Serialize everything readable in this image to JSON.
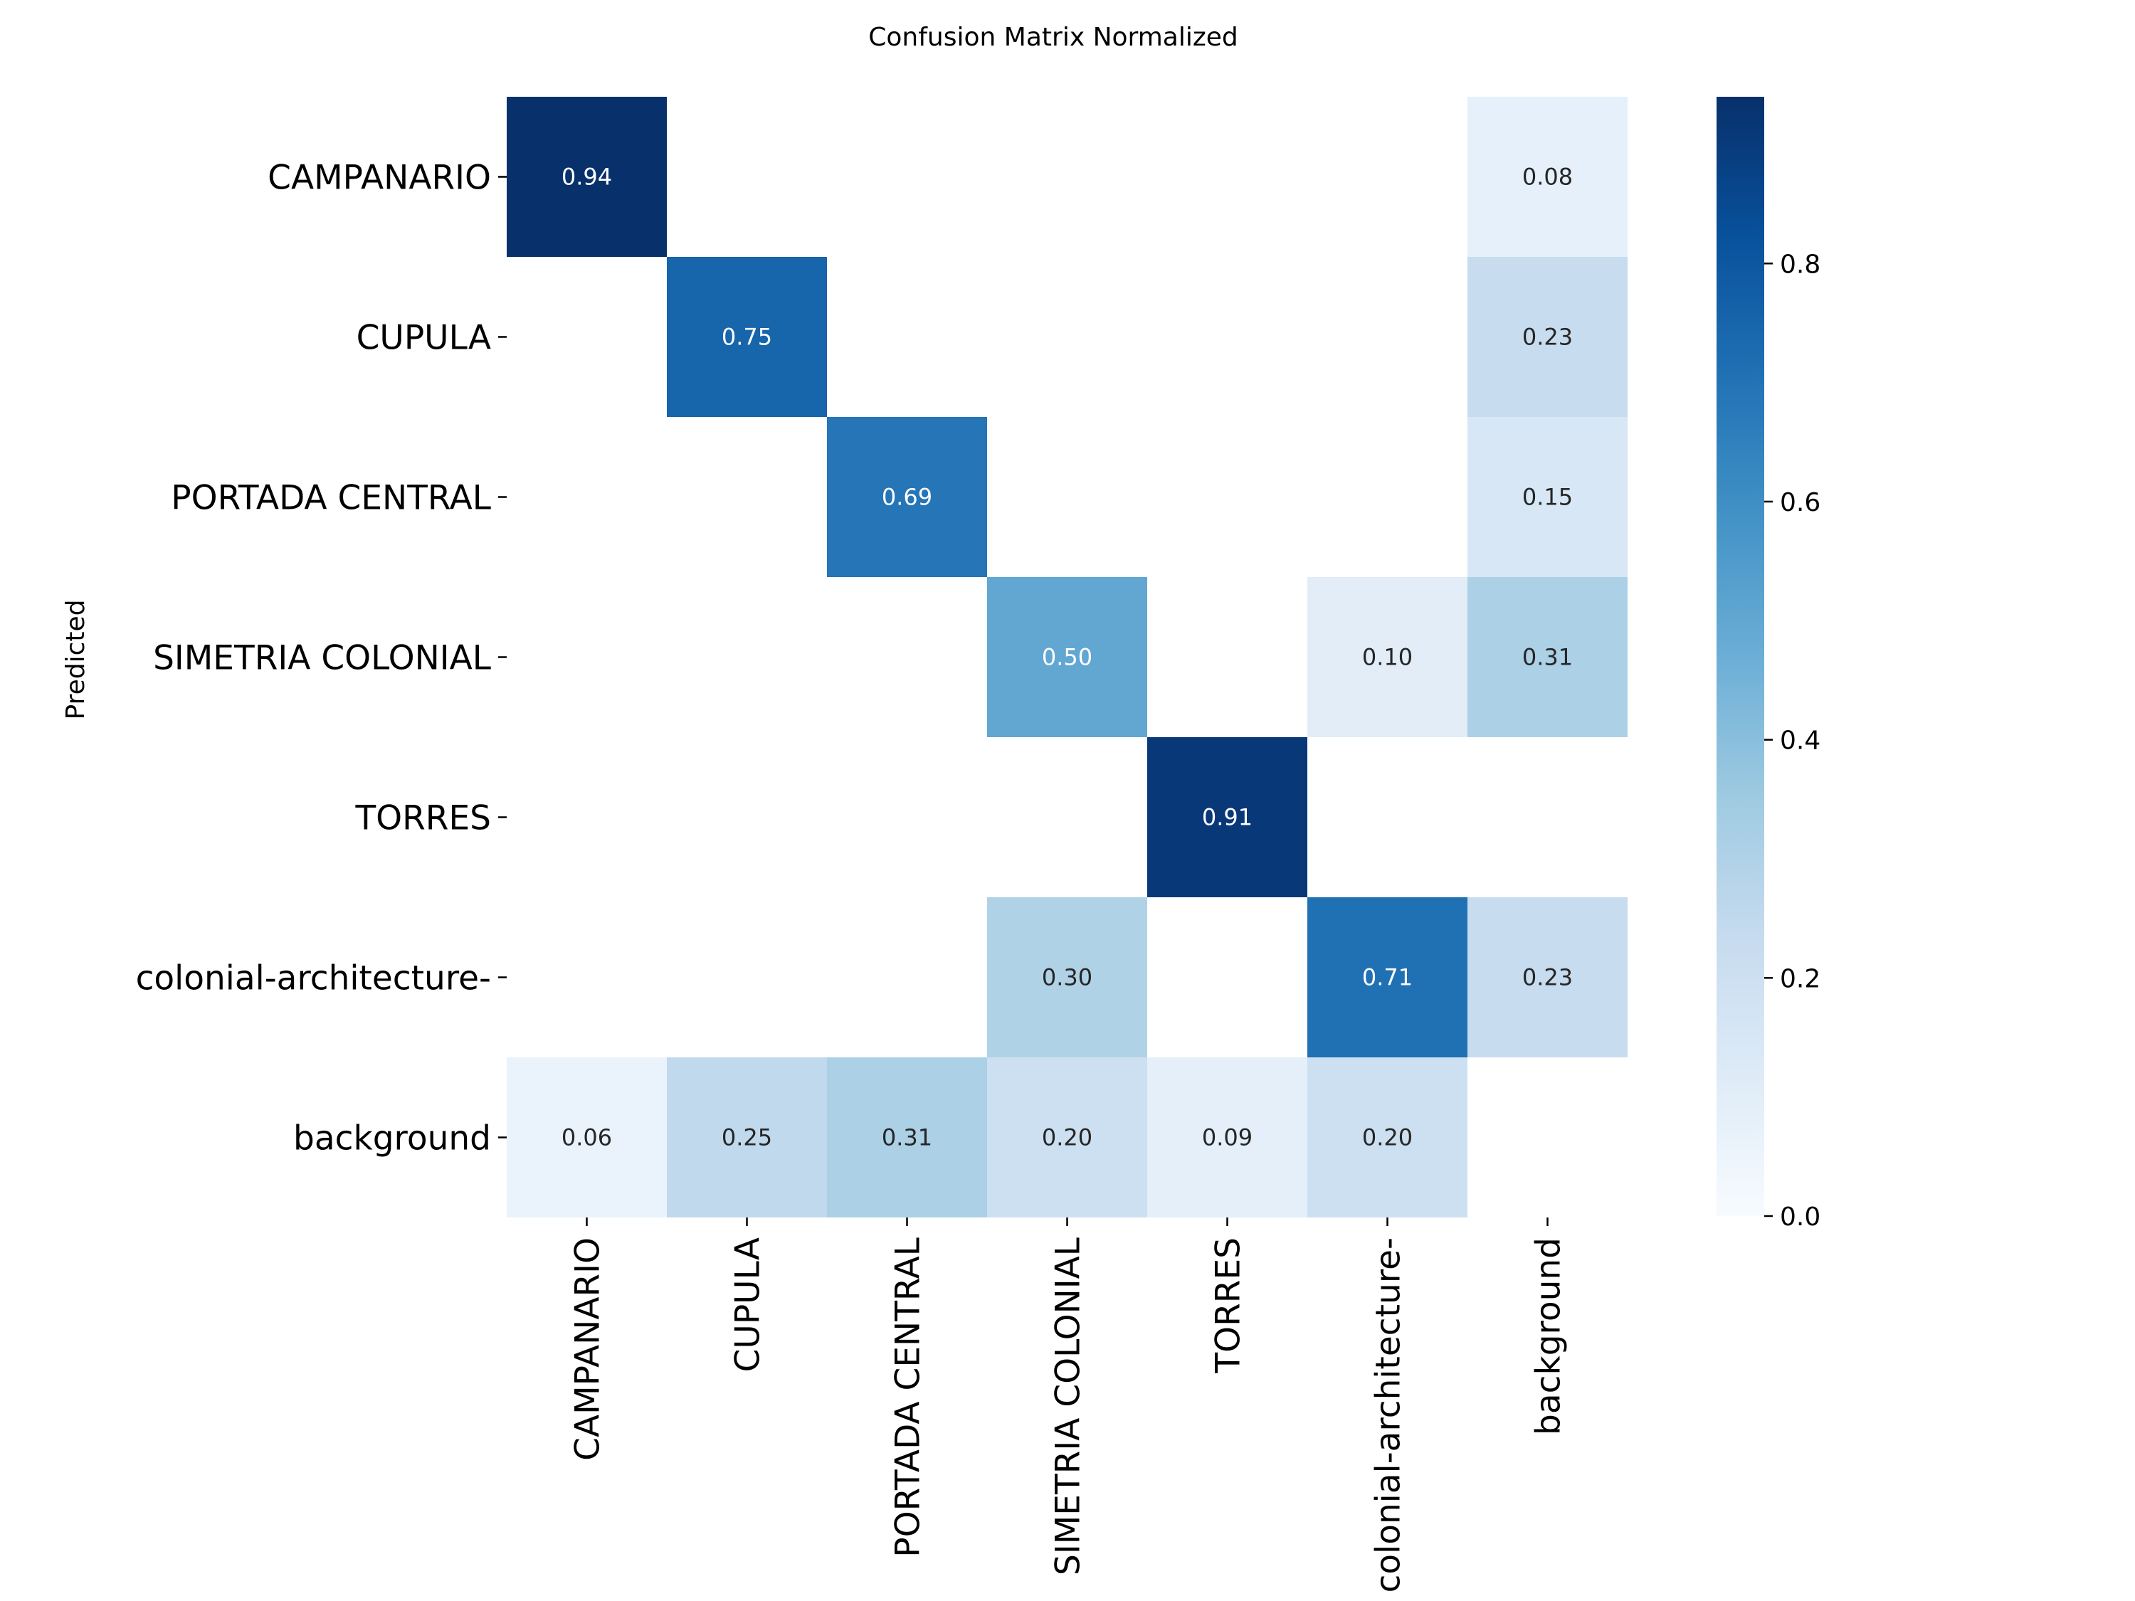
{
  "chart_data": {
    "type": "heatmap",
    "title": "Confusion Matrix Normalized",
    "ylabel": "Predicted",
    "xlabel": "",
    "x_categories": [
      "CAMPANARIO",
      "CUPULA",
      "PORTADA CENTRAL",
      "SIMETRIA COLONIAL",
      "TORRES",
      "colonial-architecture-",
      "background"
    ],
    "y_categories": [
      "CAMPANARIO",
      "CUPULA",
      "PORTADA CENTRAL",
      "SIMETRIA COLONIAL",
      "TORRES",
      "colonial-architecture-",
      "background"
    ],
    "values": [
      [
        0.94,
        null,
        null,
        null,
        null,
        null,
        0.08
      ],
      [
        null,
        0.75,
        null,
        null,
        null,
        null,
        0.23
      ],
      [
        null,
        null,
        0.69,
        null,
        null,
        null,
        0.15
      ],
      [
        null,
        null,
        null,
        0.5,
        null,
        0.1,
        0.31
      ],
      [
        null,
        null,
        null,
        null,
        0.91,
        null,
        null
      ],
      [
        null,
        null,
        null,
        0.3,
        null,
        0.71,
        0.23
      ],
      [
        0.06,
        0.25,
        0.31,
        0.2,
        0.09,
        0.2,
        null
      ]
    ],
    "colormap": "Blues",
    "colorbar": {
      "range": [
        0,
        0.94
      ],
      "ticks": [
        0.0,
        0.2,
        0.4,
        0.6,
        0.8
      ],
      "tick_labels": [
        "0.0",
        "0.2",
        "0.4",
        "0.6",
        "0.8"
      ]
    }
  }
}
